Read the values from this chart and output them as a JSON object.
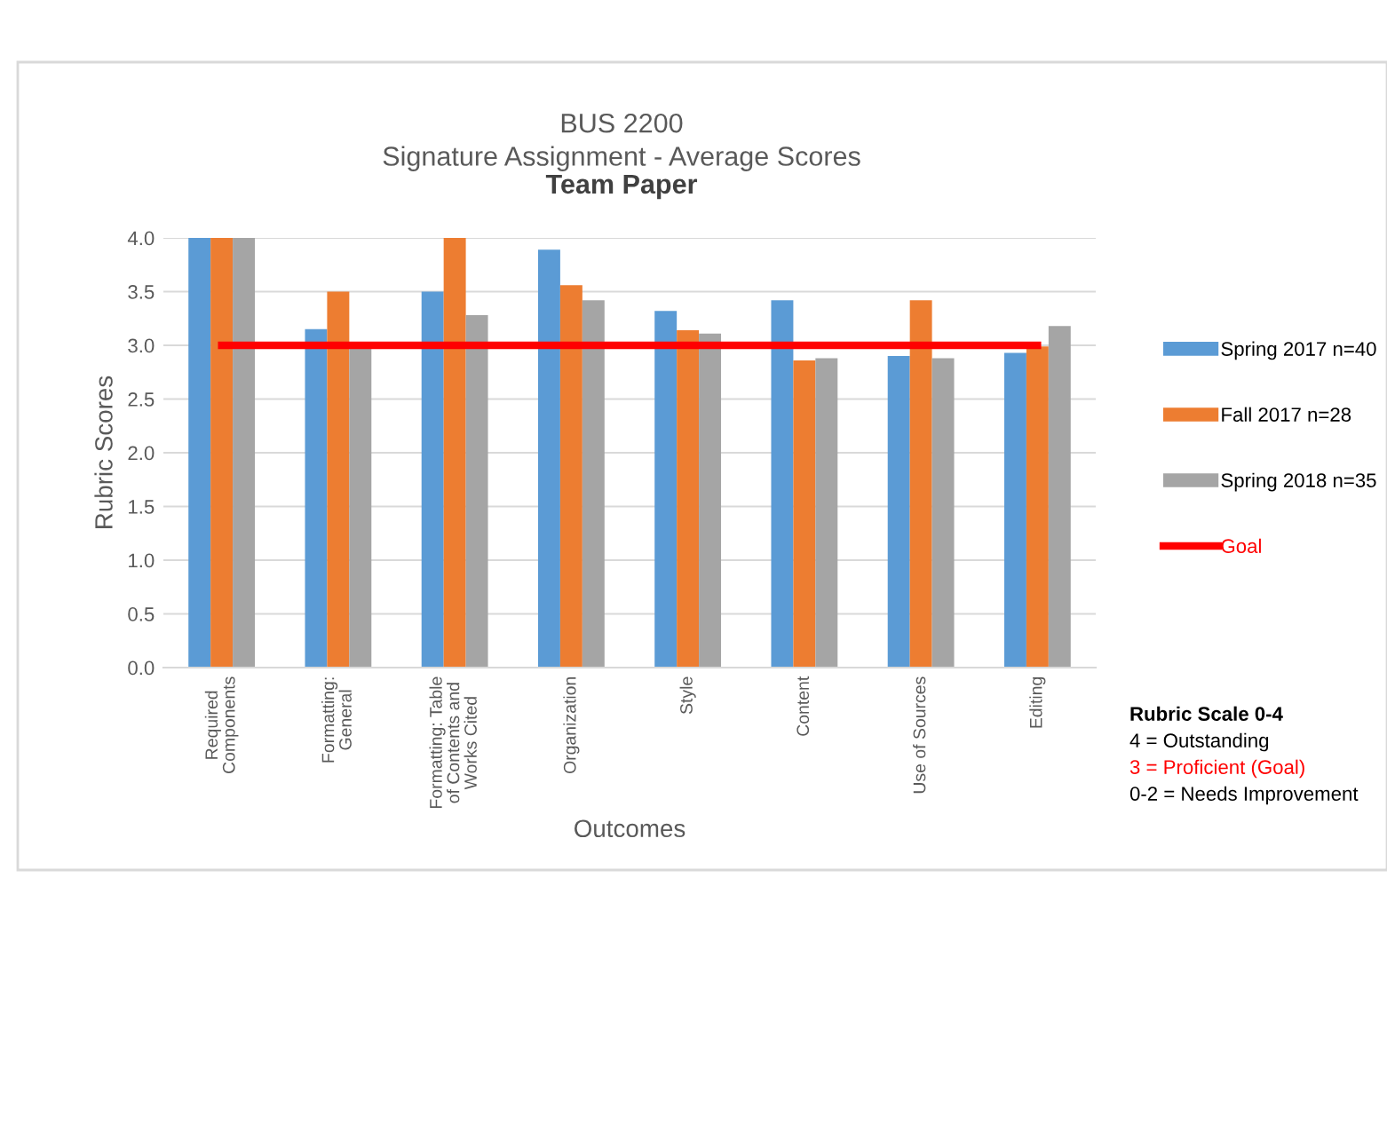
{
  "chart_data": {
    "type": "bar",
    "title": "BUS 2200\nSignature Assignment - Average Scores",
    "subtitle": "Team Paper",
    "xlabel": "Outcomes",
    "ylabel": "Rubric Scores",
    "categories": [
      "Required\nComponents",
      "Formatting:\nGeneral",
      "Formatting: Table\nof Contents and\nWorks Cited",
      "Organization",
      "Style",
      "Content",
      "Use of Sources",
      "Editing"
    ],
    "series": [
      {
        "name": "Spring 2017 n=40",
        "color": "#5b9bd5",
        "values": [
          4.0,
          3.15,
          3.5,
          3.89,
          3.32,
          3.42,
          2.9,
          2.93
        ]
      },
      {
        "name": "Fall 2017 n=28",
        "color": "#ed7d31",
        "values": [
          4.0,
          3.5,
          4.0,
          3.56,
          3.14,
          2.86,
          3.42,
          2.99
        ]
      },
      {
        "name": "Spring 2018 n=35",
        "color": "#a5a5a5",
        "values": [
          4.0,
          3.0,
          3.28,
          3.42,
          3.11,
          2.88,
          2.88,
          3.18
        ]
      },
      {
        "name": "Goal",
        "type": "line",
        "color": "#ff0000",
        "values": [
          3,
          3,
          3,
          3,
          3,
          3,
          3,
          3
        ]
      }
    ],
    "ylim": [
      0,
      4
    ],
    "yticks": [
      {
        "value": 0,
        "label": "0.0"
      },
      0.5,
      {
        "value": 1,
        "label": "1.0"
      },
      1.5,
      {
        "value": 2,
        "label": "2.0"
      },
      2.5,
      {
        "value": 3,
        "label": "3.0"
      },
      3.5,
      {
        "value": 4,
        "label": "4.0"
      }
    ],
    "grid": "y",
    "legend": "right",
    "marker": "none",
    "annotations": [
      "Rubric Scale 0-4",
      "4 = Outstanding",
      "3 = Proficient (Goal)",
      "0-2 = Needs Improvement"
    ]
  }
}
